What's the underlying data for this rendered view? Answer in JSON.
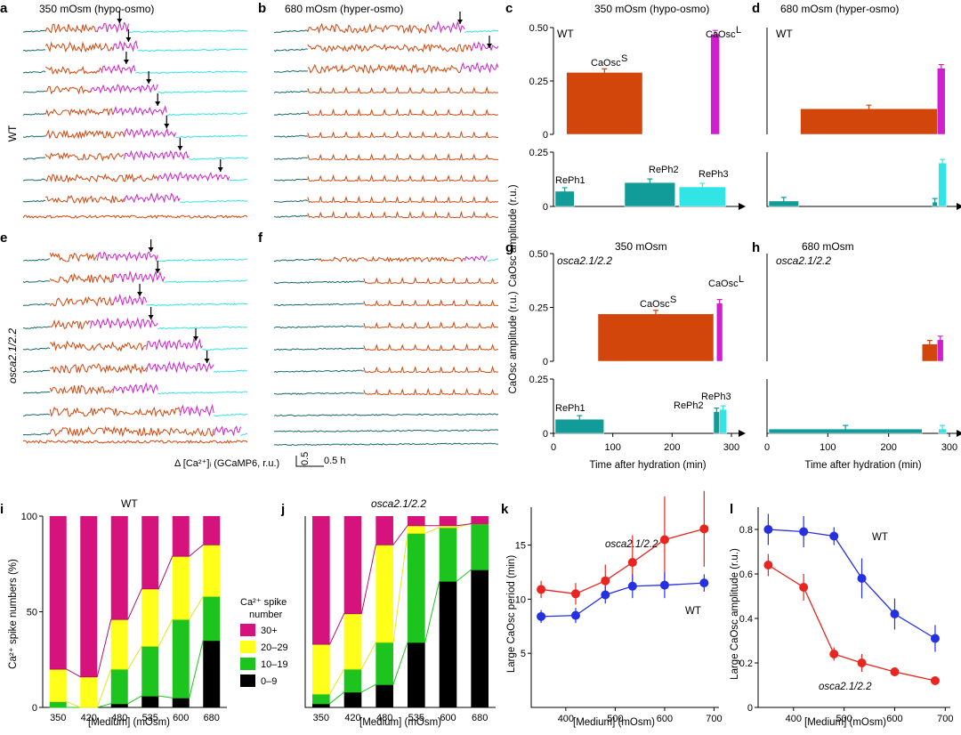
{
  "colors": {
    "pink": "#d6127d",
    "yellow": "#ffff1a",
    "green": "#1ec41e",
    "black": "#000000",
    "red": "#e8251f",
    "blue": "#2530e3",
    "orange": "#d2460c",
    "magenta": "#cf1fcf",
    "teal": "#119c99",
    "cyan": "#31e4e6",
    "darkteal": "#16686e"
  },
  "panels": {
    "a": {
      "letter": "a",
      "title": "350 mOsm (hypo-osmo)"
    },
    "b": {
      "letter": "b",
      "title": "680 mOsm (hyper-osmo)"
    },
    "c": {
      "letter": "c",
      "title": "350 mOsm (hypo-osmo)",
      "genotype": "WT"
    },
    "d": {
      "letter": "d",
      "title": "680 mOsm (hyper-osmo)",
      "genotype": "WT"
    },
    "e": {
      "letter": "e"
    },
    "f": {
      "letter": "f"
    },
    "g": {
      "letter": "g",
      "title": "350 mOsm",
      "genotype": "osca2.1/2.2"
    },
    "h": {
      "letter": "h",
      "title": "680 mOsm",
      "genotype": "osca2.1/2.2"
    },
    "i": {
      "letter": "i",
      "title": "WT"
    },
    "j": {
      "letter": "j",
      "title": "osca2.1/2.2"
    },
    "k": {
      "letter": "k"
    },
    "l": {
      "letter": "l"
    }
  },
  "traces": {
    "row_label_wt": "WT",
    "row_label_mut": "osca2.1/2.2",
    "scale_label": "Δ [Ca²⁺]ᵢ (GCaMP6, r.u.)",
    "scale_y": "0.5",
    "scale_x": "0.5 h"
  },
  "timecourse": {
    "ylabel": "CaOsc amplitude (r.u.)",
    "xlabel": "Time after hydration (min)",
    "x_ticks": [
      "0",
      "100",
      "200",
      "300"
    ],
    "y_ticks_top": [
      "0",
      "0.25",
      "0.50"
    ],
    "y_ticks_bottom": [
      "0",
      "0.25"
    ],
    "label_caosc_s": "CaOsc",
    "label_caosc_s_sup": "S",
    "label_caosc_l": "CaOsc",
    "label_caosc_l_sup": "L",
    "label_reph1": "RePh1",
    "label_reph2": "RePh2",
    "label_reph3": "RePh3"
  },
  "spike_legend": {
    "title_line1": "Ca²⁺ spike",
    "title_line2": "number",
    "items": [
      "30+",
      "20–29",
      "10–19",
      "0–9"
    ]
  },
  "chart_data": [
    {
      "panel": "i",
      "type": "bar",
      "stacked": true,
      "title": "WT",
      "xlabel": "[Medium] (mOsm)",
      "ylabel": "Ca²⁺ spike numbers (%)",
      "categories": [
        "350",
        "420",
        "480",
        "535",
        "600",
        "680"
      ],
      "y_ticks": [
        "0",
        "50",
        "100"
      ],
      "ylim": [
        0,
        100
      ],
      "series": [
        {
          "name": "0–9",
          "color": "#000000",
          "values": [
            0,
            0,
            2,
            6,
            5,
            35
          ]
        },
        {
          "name": "10–19",
          "color": "#1ec41e",
          "values": [
            3,
            0,
            18,
            26,
            41,
            23
          ]
        },
        {
          "name": "20–29",
          "color": "#ffff1a",
          "values": [
            17,
            16,
            26,
            30,
            33,
            27
          ]
        },
        {
          "name": "30+",
          "color": "#d6127d",
          "values": [
            80,
            84,
            54,
            38,
            21,
            15
          ]
        }
      ]
    },
    {
      "panel": "j",
      "type": "bar",
      "stacked": true,
      "title": "osca2.1/2.2",
      "xlabel": "[Medium] (mOsm)",
      "ylabel": "",
      "categories": [
        "350",
        "420",
        "480",
        "535",
        "600",
        "680"
      ],
      "ylim": [
        0,
        100
      ],
      "series": [
        {
          "name": "0–9",
          "color": "#000000",
          "values": [
            2,
            8,
            12,
            34,
            66,
            72
          ]
        },
        {
          "name": "10–19",
          "color": "#1ec41e",
          "values": [
            5,
            12,
            22,
            57,
            28,
            24
          ]
        },
        {
          "name": "20–29",
          "color": "#ffff1a",
          "values": [
            26,
            29,
            51,
            4,
            1,
            0
          ]
        },
        {
          "name": "30+",
          "color": "#d6127d",
          "values": [
            67,
            51,
            15,
            5,
            5,
            4
          ]
        }
      ]
    },
    {
      "panel": "k",
      "type": "line",
      "xlabel": "[Medium] (mOsm)",
      "ylabel": "Large CaOsc period (min)",
      "x_ticks": [
        "400",
        "500",
        "600",
        "700"
      ],
      "y_ticks": [
        "5",
        "10",
        "15"
      ],
      "xlim": [
        330,
        710
      ],
      "ylim": [
        0,
        18.5
      ],
      "series": [
        {
          "name": "osca2.1/2.2",
          "color": "#e8251f",
          "x": [
            350,
            420,
            480,
            535,
            600,
            680
          ],
          "y": [
            10.9,
            10.5,
            11.7,
            13.4,
            15.5,
            16.5
          ],
          "err": [
            0.8,
            1.0,
            1.5,
            2.5,
            4.0,
            3.5
          ]
        },
        {
          "name": "WT",
          "color": "#2530e3",
          "x": [
            350,
            420,
            480,
            535,
            600,
            680
          ],
          "y": [
            8.4,
            8.5,
            10.4,
            11.2,
            11.3,
            11.5
          ],
          "err": [
            0.6,
            0.7,
            0.8,
            1.1,
            1.2,
            0.8
          ]
        }
      ]
    },
    {
      "panel": "l",
      "type": "line",
      "xlabel": "[Medium] (mOsm)",
      "ylabel": "Large CaOsc amplitude (r.u.)",
      "x_ticks": [
        "400",
        "500",
        "600",
        "700"
      ],
      "y_ticks": [
        "0",
        "0.2",
        "0.4",
        "0.6",
        "0.8"
      ],
      "xlim": [
        330,
        710
      ],
      "ylim": [
        0,
        0.9
      ],
      "series": [
        {
          "name": "WT",
          "color": "#2530e3",
          "x": [
            350,
            420,
            480,
            535,
            600,
            680
          ],
          "y": [
            0.8,
            0.79,
            0.77,
            0.58,
            0.42,
            0.31
          ],
          "err": [
            0.07,
            0.07,
            0.04,
            0.09,
            0.07,
            0.06
          ]
        },
        {
          "name": "osca2.1/2.2",
          "color": "#e8251f",
          "x": [
            350,
            420,
            480,
            535,
            600,
            680
          ],
          "y": [
            0.64,
            0.54,
            0.24,
            0.2,
            0.16,
            0.12
          ],
          "err": [
            0.05,
            0.06,
            0.03,
            0.04,
            0.02,
            0.015
          ]
        }
      ]
    },
    {
      "panel": "c",
      "type": "bar",
      "xlabel": "Time after hydration (min)",
      "ylabel": "CaOsc amplitude (r.u.)",
      "series": [
        {
          "name": "CaOscS",
          "color": "#d2460c",
          "x_start": 22,
          "x_end": 150,
          "value": 0.29
        },
        {
          "name": "CaOscL",
          "color": "#cf1fcf",
          "x_start": 265,
          "x_end": 280,
          "value": 0.47
        },
        {
          "name": "RePh1",
          "color": "#119c99",
          "x_start": 3,
          "x_end": 35,
          "value": 0.07
        },
        {
          "name": "RePh2",
          "color": "#119c99",
          "x_start": 120,
          "x_end": 205,
          "value": 0.11
        },
        {
          "name": "RePh3",
          "color": "#31e4e6",
          "x_start": 212,
          "x_end": 290,
          "value": 0.09
        }
      ]
    },
    {
      "panel": "d",
      "type": "bar",
      "xlabel": "Time after hydration (min)",
      "ylabel": "CaOsc amplitude (r.u.)",
      "series": [
        {
          "name": "CaOscS",
          "color": "#d2460c",
          "x_start": 55,
          "x_end": 280,
          "value": 0.12
        },
        {
          "name": "CaOscL",
          "color": "#cf1fcf",
          "x_start": 280,
          "x_end": 293,
          "value": 0.31
        },
        {
          "name": "RePh1",
          "color": "#119c99",
          "x_start": 3,
          "x_end": 52,
          "value": 0.025
        },
        {
          "name": "RePh2",
          "color": "#119c99",
          "x_start": 272,
          "x_end": 280,
          "value": 0.02
        },
        {
          "name": "RePh3",
          "color": "#31e4e6",
          "x_start": 282,
          "x_end": 295,
          "value": 0.2
        }
      ]
    },
    {
      "panel": "g",
      "type": "bar",
      "xlabel": "Time after hydration (min)",
      "ylabel": "CaOsc amplitude (r.u.)",
      "series": [
        {
          "name": "CaOscS",
          "color": "#d2460c",
          "x_start": 75,
          "x_end": 270,
          "value": 0.22
        },
        {
          "name": "CaOscL",
          "color": "#cf1fcf",
          "x_start": 275,
          "x_end": 285,
          "value": 0.27
        },
        {
          "name": "RePh1",
          "color": "#119c99",
          "x_start": 3,
          "x_end": 85,
          "value": 0.065
        },
        {
          "name": "RePh2",
          "color": "#119c99",
          "x_start": 270,
          "x_end": 280,
          "value": 0.1
        },
        {
          "name": "RePh3",
          "color": "#31e4e6",
          "x_start": 280,
          "x_end": 292,
          "value": 0.11
        }
      ]
    },
    {
      "panel": "h",
      "type": "bar",
      "xlabel": "Time after hydration (min)",
      "ylabel": "",
      "series": [
        {
          "name": "CaOscS",
          "color": "#d2460c",
          "x_start": 255,
          "x_end": 280,
          "value": 0.08
        },
        {
          "name": "CaOscL",
          "color": "#cf1fcf",
          "x_start": 280,
          "x_end": 290,
          "value": 0.1
        },
        {
          "name": "RePh1",
          "color": "#119c99",
          "x_start": 3,
          "x_end": 255,
          "value": 0.02
        },
        {
          "name": "RePh3",
          "color": "#31e4e6",
          "x_start": 282,
          "x_end": 295,
          "value": 0.02
        }
      ]
    }
  ]
}
